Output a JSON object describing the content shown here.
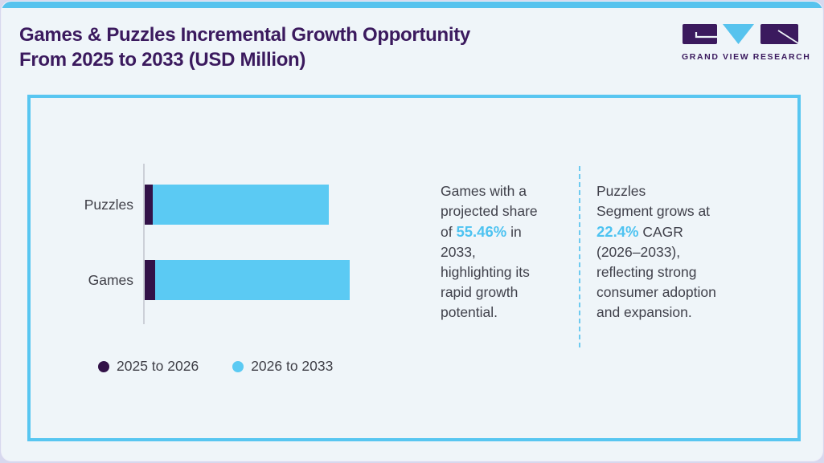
{
  "header": {
    "title_line1": "Games & Puzzles Incremental Growth Opportunity",
    "title_line2": "From 2025 to 2033 (USD Million)",
    "brand_name": "GRAND VIEW RESEARCH"
  },
  "colors": {
    "accent_blue": "#57c3ee",
    "bar_blue": "#5bcaf3",
    "bar_purple": "#321248",
    "title_purple": "#3b1a5e",
    "body_text": "#40414b",
    "highlight_text": "#4ec3f1",
    "panel_border": "#58c6f1"
  },
  "chart_data": {
    "type": "bar",
    "orientation": "horizontal",
    "stacked": true,
    "title": "Games & Puzzles Incremental Growth Opportunity From 2025 to 2033 (USD Million)",
    "value_axis_visible": false,
    "values_note": "No numeric axis shown; values are estimated relative units where the longest bar (Games total) = 100",
    "categories": [
      "Puzzles",
      "Games"
    ],
    "series": [
      {
        "name": "2025 to 2026",
        "color": "#321248",
        "values": [
          4,
          5
        ]
      },
      {
        "name": "2026 to 2033",
        "color": "#5bcaf3",
        "values": [
          86,
          95
        ]
      }
    ],
    "legend_position": "bottom",
    "annotations": [
      "Games with a projected share of 55.46% in 2033, highlighting its rapid growth potential.",
      "Puzzles Segment grows at 22.4% CAGR (2026–2033), reflecting strong consumer adoption and expansion."
    ]
  },
  "insights": {
    "left": {
      "line1": "Games with a",
      "line2": "projected share",
      "line3_pre": "of ",
      "line3_highlight": "55.46%",
      "line3_post": " in",
      "line4": "2033,",
      "line5": "highlighting its",
      "line6": "rapid growth",
      "line7": "potential."
    },
    "right": {
      "line1": "Puzzles",
      "line2": "Segment grows at",
      "line3_highlight": "22.4%",
      "line3_post": " CAGR",
      "line4": "(2026–2033),",
      "line5": "reflecting strong",
      "line6": "consumer adoption",
      "line7": "and expansion."
    }
  }
}
